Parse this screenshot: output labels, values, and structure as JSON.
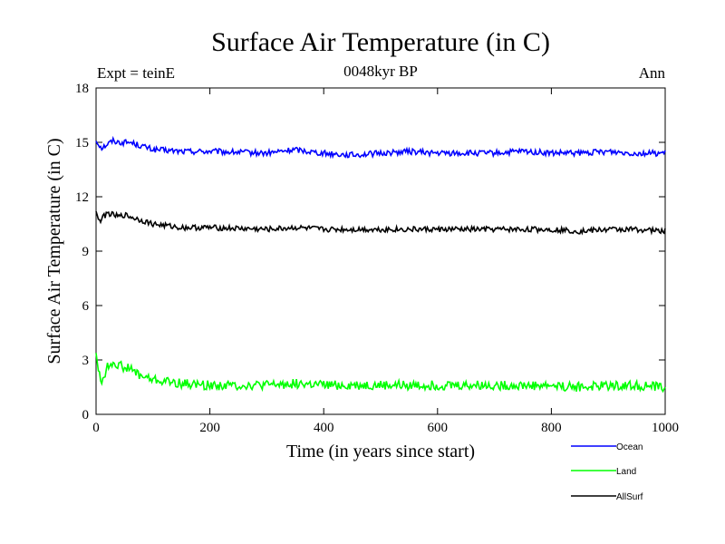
{
  "chart_data": {
    "type": "line",
    "title": "Surface Air Temperature (in C)",
    "subtitle_left": "Expt = teinE",
    "subtitle_center": "0048kyr BP",
    "subtitle_right": "Ann",
    "xlabel": "Time (in years since start)",
    "ylabel": "Surface Air Temperature (in C)",
    "xlim": [
      0,
      1000
    ],
    "ylim": [
      0,
      18
    ],
    "xticks": [
      0,
      200,
      400,
      600,
      800,
      1000
    ],
    "yticks": [
      0,
      3,
      6,
      9,
      12,
      15,
      18
    ],
    "grid": false,
    "legend_position": "bottom-right, outside plot",
    "series": [
      {
        "name": "Ocean",
        "color": "#0000ff",
        "x": [
          0,
          10,
          20,
          30,
          40,
          50,
          60,
          70,
          80,
          100,
          150,
          200,
          300,
          350,
          400,
          450,
          500,
          550,
          600,
          650,
          700,
          750,
          800,
          850,
          900,
          950,
          1000
        ],
        "y": [
          15.1,
          14.7,
          14.9,
          15.1,
          15.0,
          15.0,
          15.0,
          14.9,
          14.8,
          14.6,
          14.5,
          14.5,
          14.4,
          14.6,
          14.4,
          14.3,
          14.4,
          14.5,
          14.4,
          14.4,
          14.4,
          14.5,
          14.4,
          14.4,
          14.5,
          14.4,
          14.4
        ]
      },
      {
        "name": "Land",
        "color": "#00ff00",
        "x": [
          0,
          5,
          10,
          20,
          30,
          40,
          50,
          60,
          70,
          80,
          100,
          150,
          200,
          300,
          350,
          400,
          450,
          500,
          550,
          600,
          650,
          700,
          750,
          800,
          850,
          900,
          950,
          1000
        ],
        "y": [
          3.5,
          2.2,
          1.8,
          2.6,
          2.9,
          2.7,
          2.6,
          2.5,
          2.3,
          2.1,
          1.9,
          1.7,
          1.6,
          1.6,
          1.7,
          1.6,
          1.6,
          1.6,
          1.6,
          1.6,
          1.6,
          1.6,
          1.6,
          1.6,
          1.5,
          1.6,
          1.6,
          1.5
        ]
      },
      {
        "name": "AllSurf",
        "color": "#000000",
        "x": [
          0,
          5,
          10,
          20,
          30,
          40,
          50,
          60,
          70,
          80,
          100,
          150,
          200,
          300,
          350,
          400,
          450,
          500,
          550,
          600,
          650,
          700,
          750,
          800,
          850,
          900,
          950,
          1000
        ],
        "y": [
          11.3,
          10.6,
          10.8,
          11.1,
          11.0,
          10.9,
          11.0,
          10.9,
          10.8,
          10.7,
          10.5,
          10.3,
          10.3,
          10.2,
          10.3,
          10.2,
          10.2,
          10.2,
          10.2,
          10.2,
          10.2,
          10.2,
          10.2,
          10.2,
          10.1,
          10.2,
          10.2,
          10.1
        ]
      }
    ]
  }
}
